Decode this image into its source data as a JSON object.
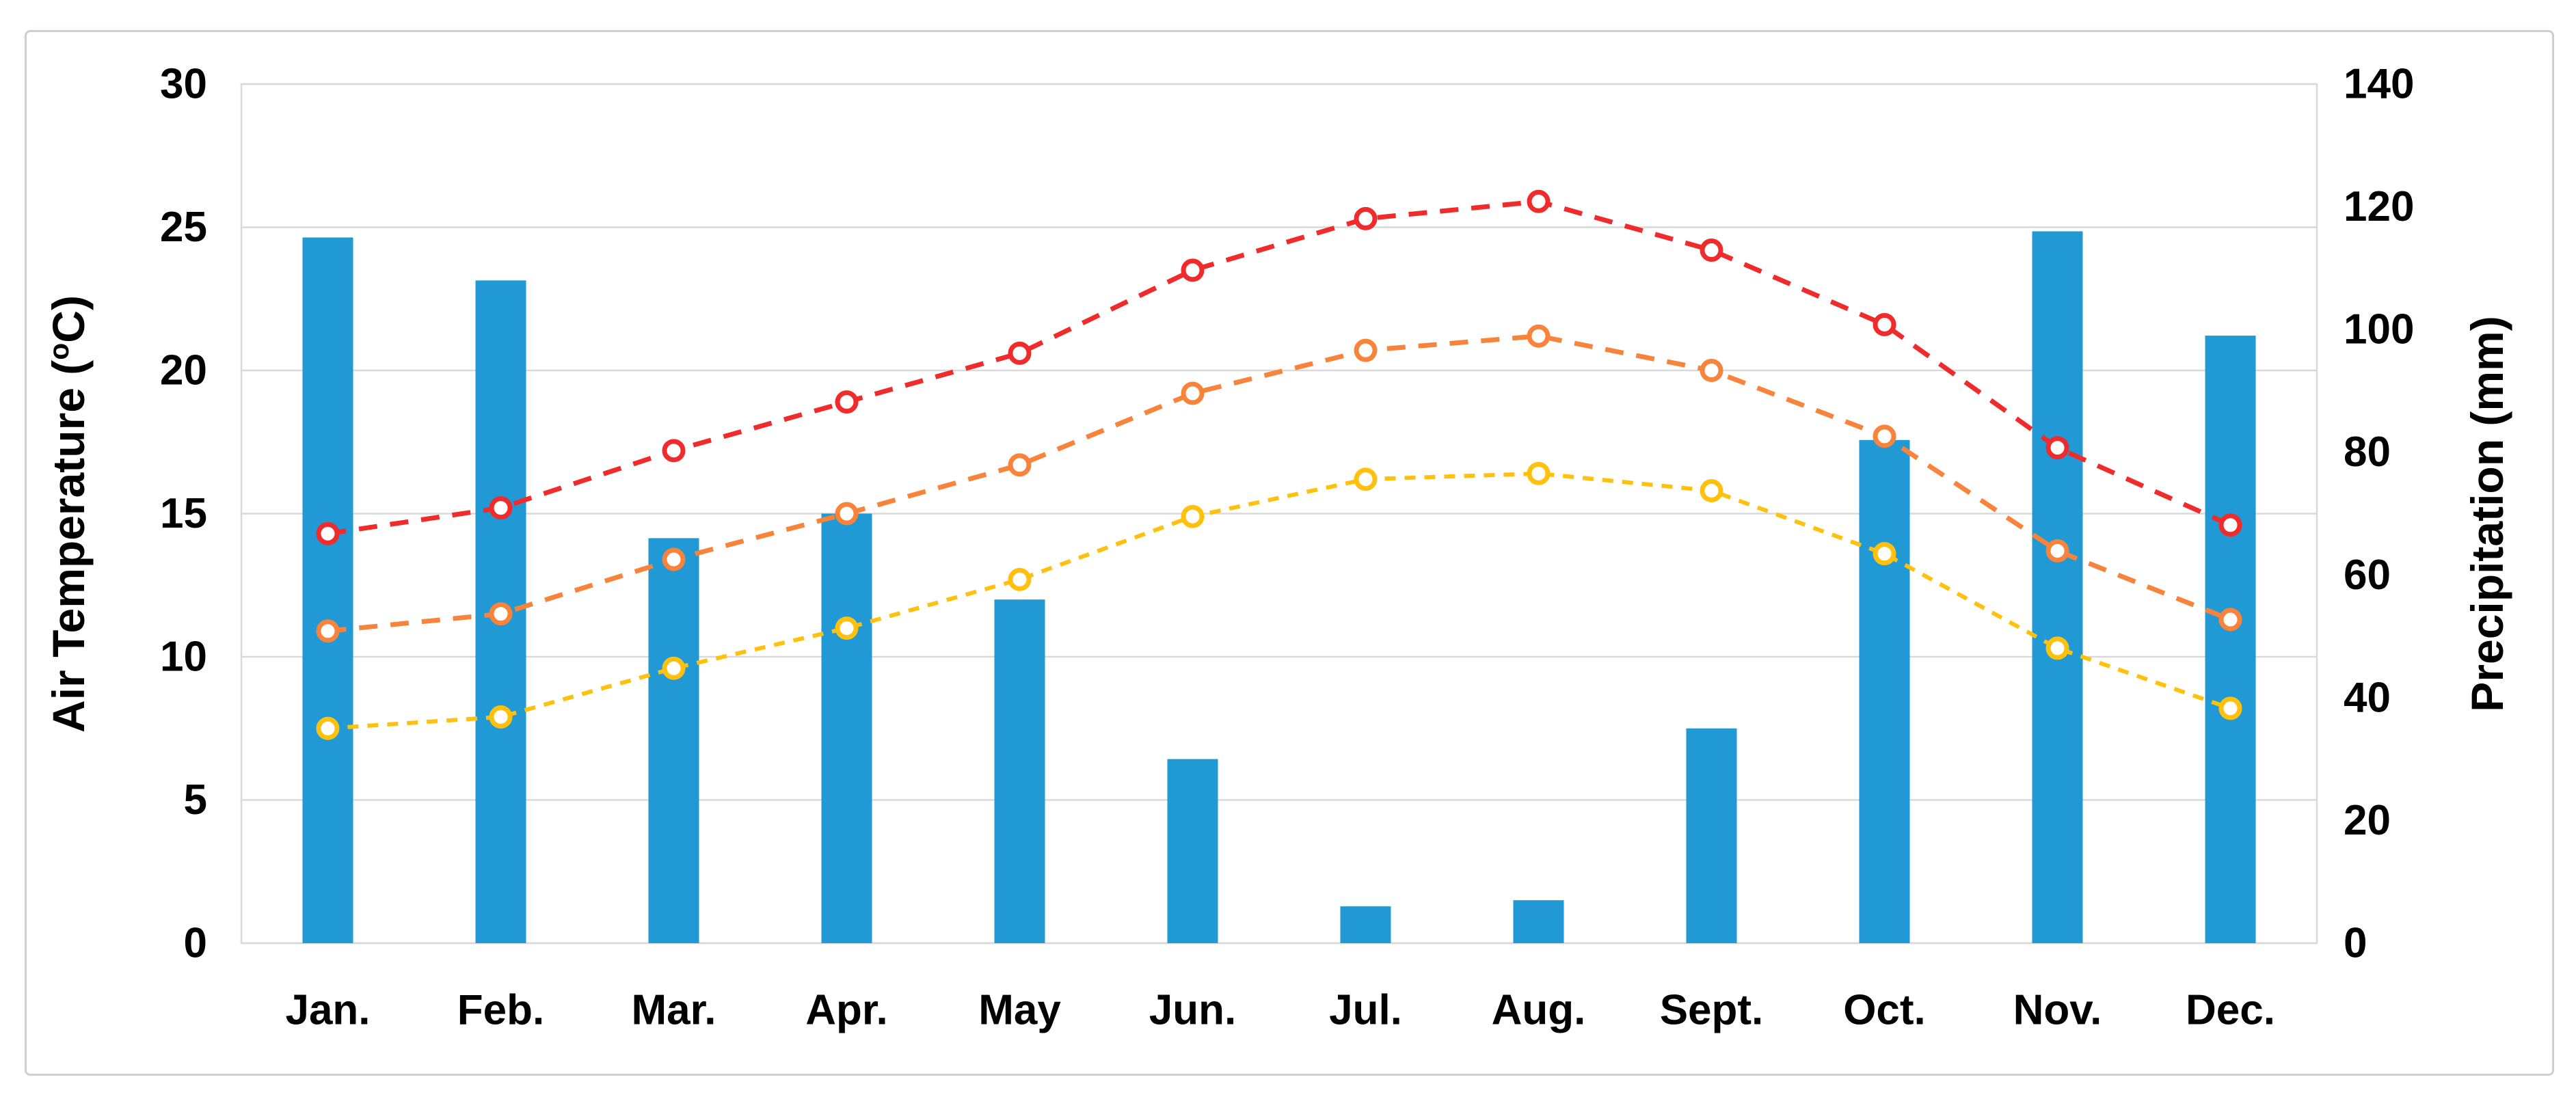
{
  "figure": {
    "background": "#ffffff",
    "frame_border_color": "#ccd0d5",
    "plot_border_color": "#d9d9d9",
    "gridline_color": "#d9d9d9",
    "text_color": "#000000"
  },
  "left_axis": {
    "title_prefix": "Air Temperature (",
    "title_sup": "o",
    "title_suffix": "C)",
    "min": 0,
    "max": 30,
    "ticks": [
      0,
      5,
      10,
      15,
      20,
      25,
      30
    ]
  },
  "right_axis": {
    "title": "Precipitation (mm)",
    "min": 0,
    "max": 140,
    "ticks": [
      0,
      20,
      40,
      60,
      80,
      100,
      120,
      140
    ]
  },
  "chart_data": {
    "type": "bar+line combo (climograph), no legend, no title",
    "categories": [
      "Jan.",
      "Feb.",
      "Mar.",
      "Apr.",
      "May",
      "Jun.",
      "Jul.",
      "Aug.",
      "Sept.",
      "Oct.",
      "Nov.",
      "Dec."
    ],
    "grid": "horizontal gridlines every 5 on left axis",
    "ylim_left": [
      0,
      30
    ],
    "ylim_right": [
      0,
      140
    ],
    "bars": {
      "name": "precipitation",
      "unit": "mm",
      "axis": "right",
      "color": "#2099D5",
      "values": [
        115,
        108,
        66,
        70,
        56,
        30,
        6,
        7,
        35,
        82,
        116,
        99
      ]
    },
    "series": [
      {
        "name": "red-dashed-line-upper",
        "axis": "left",
        "unit": "degC",
        "color": "#F02B2B",
        "marker": "open-circle",
        "values": [
          14.3,
          15.2,
          17.2,
          18.9,
          20.6,
          23.5,
          25.3,
          25.9,
          24.2,
          21.6,
          17.3,
          14.6
        ]
      },
      {
        "name": "orange-dashed-line-middle",
        "axis": "left",
        "unit": "degC",
        "color": "#F8833B",
        "marker": "open-circle",
        "values": [
          10.9,
          11.5,
          13.4,
          15.0,
          16.7,
          19.2,
          20.7,
          21.2,
          20.0,
          17.7,
          13.7,
          11.3
        ]
      },
      {
        "name": "yellow-dashed-line-lower",
        "axis": "left",
        "unit": "degC",
        "color": "#FFC10D",
        "marker": "open-circle",
        "values": [
          7.5,
          7.9,
          9.6,
          11.0,
          12.7,
          14.9,
          16.2,
          16.4,
          15.8,
          13.6,
          10.3,
          8.2
        ]
      }
    ]
  }
}
